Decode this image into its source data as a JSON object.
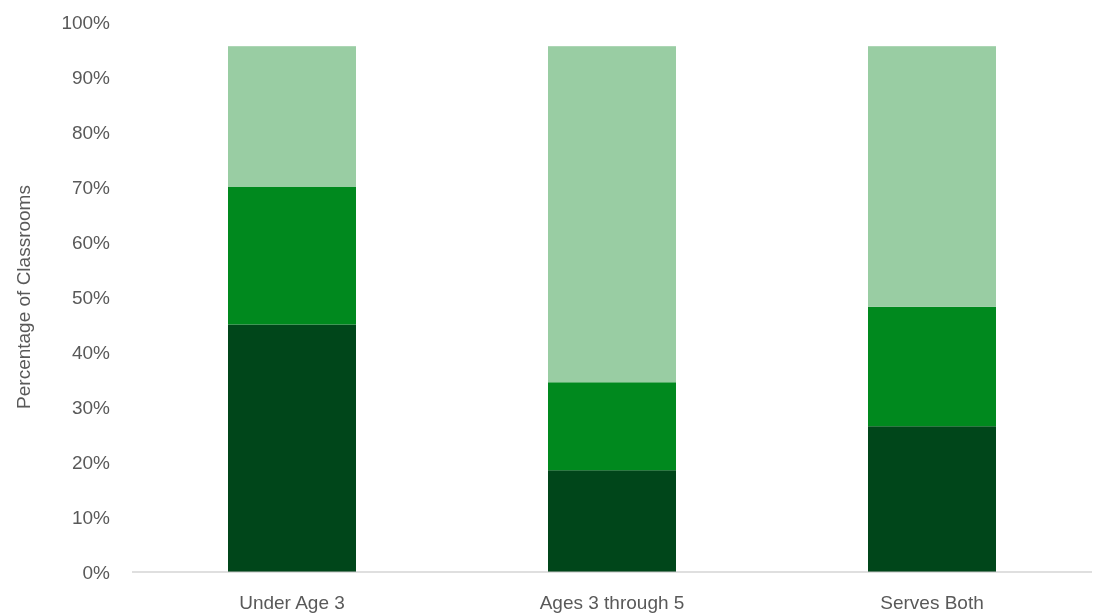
{
  "chart_data": {
    "type": "bar",
    "stacked": true,
    "ylabel": "Percentage of Classrooms",
    "categories": [
      "Under Age 3",
      "Ages 3 through 5",
      "Serves Both"
    ],
    "series": [
      {
        "color": "#00461a",
        "values": [
          45,
          18.5,
          26.5
        ]
      },
      {
        "color": "#00891e",
        "values": [
          25,
          16,
          21.7
        ]
      },
      {
        "color": "#99cda3",
        "values": [
          25.6,
          61.1,
          47.4
        ]
      }
    ],
    "ylim": [
      0,
      100
    ],
    "yticks": [
      {
        "value": 0,
        "label": "0%"
      },
      {
        "value": 10,
        "label": "10%"
      },
      {
        "value": 20,
        "label": "20%"
      },
      {
        "value": 30,
        "label": "30%"
      },
      {
        "value": 40,
        "label": "40%"
      },
      {
        "value": 50,
        "label": "50%"
      },
      {
        "value": 60,
        "label": "60%"
      },
      {
        "value": 70,
        "label": "70%"
      },
      {
        "value": 80,
        "label": "80%"
      },
      {
        "value": 90,
        "label": "90%"
      },
      {
        "value": 100,
        "label": "100%"
      }
    ],
    "grid": false
  }
}
